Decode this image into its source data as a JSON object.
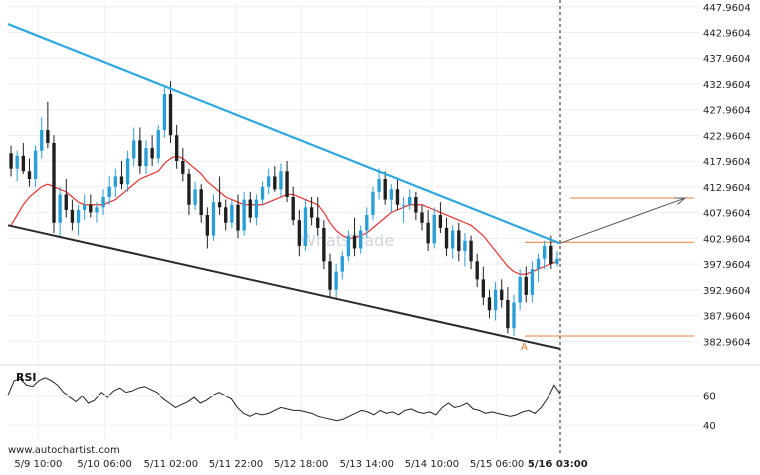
{
  "chart_data": {
    "type": "candlestick",
    "y_ticks": [
      "447.9604",
      "442.9604",
      "437.9604",
      "432.9604",
      "427.9604",
      "422.9604",
      "417.9604",
      "412.9604",
      "407.9604",
      "402.9604",
      "397.9604",
      "392.9604",
      "387.9604",
      "382.9604"
    ],
    "ylim": [
      380.5,
      448.5
    ],
    "x_ticks": [
      "5/9 10:00",
      "5/10 06:00",
      "5/11 02:00",
      "5/11 22:00",
      "5/12 18:00",
      "5/13 14:00",
      "5/14 10:00",
      "5/15 06:00",
      "5/16 03:00"
    ],
    "highlight_x_tick": "5/16 03:00",
    "candles": [
      [
        419.5,
        421.0,
        415.0,
        416.5
      ],
      [
        416.5,
        420.0,
        414.0,
        419.0
      ],
      [
        419.0,
        421.5,
        415.5,
        416.0
      ],
      [
        416.0,
        418.5,
        413.0,
        414.5
      ],
      [
        414.5,
        421.0,
        413.0,
        420.0
      ],
      [
        420.0,
        426.5,
        418.5,
        424.0
      ],
      [
        424.0,
        429.5,
        420.5,
        421.5
      ],
      [
        421.5,
        423.0,
        404.0,
        406.0
      ],
      [
        406.0,
        413.0,
        403.0,
        411.5
      ],
      [
        411.5,
        414.5,
        407.0,
        408.5
      ],
      [
        408.5,
        410.5,
        404.5,
        406.0
      ],
      [
        406.0,
        409.5,
        403.5,
        408.5
      ],
      [
        408.5,
        411.5,
        406.5,
        409.5
      ],
      [
        409.5,
        411.5,
        407.0,
        408.0
      ],
      [
        408.0,
        410.0,
        406.0,
        409.0
      ],
      [
        409.0,
        412.5,
        407.5,
        411.0
      ],
      [
        411.0,
        415.0,
        409.5,
        413.0
      ],
      [
        413.0,
        416.5,
        411.0,
        415.0
      ],
      [
        415.0,
        418.0,
        412.5,
        413.5
      ],
      [
        413.5,
        420.0,
        412.0,
        418.5
      ],
      [
        418.5,
        424.5,
        417.0,
        422.0
      ],
      [
        422.0,
        424.5,
        415.5,
        417.0
      ],
      [
        417.0,
        422.0,
        415.5,
        420.5
      ],
      [
        420.5,
        423.0,
        417.0,
        418.5
      ],
      [
        418.5,
        425.0,
        417.5,
        424.0
      ],
      [
        424.0,
        432.5,
        422.5,
        431.0
      ],
      [
        431.0,
        433.5,
        421.5,
        423.0
      ],
      [
        423.0,
        425.0,
        416.5,
        418.0
      ],
      [
        418.0,
        420.5,
        414.0,
        415.5
      ],
      [
        415.5,
        416.5,
        407.5,
        409.5
      ],
      [
        409.5,
        414.0,
        408.5,
        412.5
      ],
      [
        412.5,
        413.5,
        406.0,
        407.5
      ],
      [
        407.5,
        409.0,
        401.0,
        403.5
      ],
      [
        403.5,
        411.5,
        402.5,
        410.0
      ],
      [
        410.0,
        415.0,
        407.5,
        409.0
      ],
      [
        409.0,
        410.5,
        404.5,
        406.0
      ],
      [
        406.0,
        410.5,
        405.0,
        409.5
      ],
      [
        409.5,
        411.5,
        403.0,
        404.5
      ],
      [
        404.5,
        412.0,
        403.5,
        410.5
      ],
      [
        410.5,
        412.0,
        406.0,
        407.0
      ],
      [
        407.0,
        411.5,
        405.5,
        410.5
      ],
      [
        410.5,
        414.0,
        409.5,
        413.0
      ],
      [
        413.0,
        416.5,
        411.5,
        415.0
      ],
      [
        415.0,
        417.0,
        412.0,
        412.5
      ],
      [
        412.5,
        417.5,
        411.0,
        416.0
      ],
      [
        416.0,
        418.0,
        410.0,
        411.0
      ],
      [
        411.0,
        413.0,
        405.5,
        406.5
      ],
      [
        406.5,
        408.5,
        399.5,
        401.5
      ],
      [
        401.5,
        410.5,
        400.5,
        409.0
      ],
      [
        409.0,
        411.0,
        405.5,
        407.0
      ],
      [
        407.0,
        411.0,
        403.5,
        405.0
      ],
      [
        405.0,
        406.5,
        397.0,
        398.5
      ],
      [
        398.5,
        400.0,
        391.5,
        393.0
      ],
      [
        393.0,
        398.0,
        391.0,
        396.5
      ],
      [
        396.5,
        400.5,
        395.0,
        399.5
      ],
      [
        399.5,
        404.5,
        398.5,
        403.5
      ],
      [
        403.5,
        407.0,
        399.5,
        401.0
      ],
      [
        401.0,
        405.5,
        400.0,
        404.5
      ],
      [
        404.5,
        409.0,
        403.0,
        407.5
      ],
      [
        407.5,
        413.0,
        406.5,
        412.0
      ],
      [
        412.0,
        416.5,
        410.5,
        414.5
      ],
      [
        414.5,
        416.0,
        409.5,
        410.5
      ],
      [
        410.5,
        413.5,
        408.0,
        412.5
      ],
      [
        412.5,
        414.5,
        408.5,
        409.5
      ],
      [
        409.5,
        411.0,
        406.0,
        409.5
      ],
      [
        409.5,
        412.5,
        408.5,
        411.0
      ],
      [
        411.0,
        412.0,
        406.5,
        408.0
      ],
      [
        408.0,
        409.5,
        404.5,
        406.0
      ],
      [
        406.0,
        408.5,
        400.5,
        402.0
      ],
      [
        402.0,
        409.0,
        401.0,
        407.5
      ],
      [
        407.5,
        410.0,
        404.0,
        405.0
      ],
      [
        405.0,
        407.0,
        399.5,
        401.0
      ],
      [
        401.0,
        405.5,
        399.0,
        404.5
      ],
      [
        404.5,
        406.0,
        398.5,
        400.5
      ],
      [
        400.5,
        404.0,
        397.5,
        402.5
      ],
      [
        402.5,
        403.5,
        397.0,
        398.5
      ],
      [
        398.5,
        400.0,
        393.5,
        395.0
      ],
      [
        395.0,
        397.5,
        390.0,
        391.5
      ],
      [
        391.5,
        393.0,
        387.5,
        389.0
      ],
      [
        389.0,
        394.5,
        387.0,
        393.0
      ],
      [
        393.0,
        395.0,
        389.5,
        391.0
      ],
      [
        391.0,
        393.5,
        384.5,
        385.5
      ],
      [
        385.5,
        392.0,
        384.0,
        390.5
      ],
      [
        390.5,
        397.0,
        389.0,
        395.5
      ],
      [
        395.5,
        397.5,
        390.5,
        392.0
      ],
      [
        392.0,
        398.5,
        390.5,
        397.0
      ],
      [
        397.0,
        400.0,
        394.5,
        399.0
      ],
      [
        399.0,
        402.5,
        397.0,
        401.5
      ],
      [
        401.5,
        403.5,
        397.0,
        398.0
      ],
      [
        398.0,
        400.5,
        397.5,
        399.0
      ]
    ],
    "moving_average": [
      405.5,
      407.5,
      409.5,
      411.0,
      412.0,
      413.0,
      413.5,
      413.0,
      412.5,
      412.0,
      411.0,
      410.0,
      409.5,
      409.5,
      409.5,
      409.5,
      410.0,
      410.5,
      411.5,
      412.5,
      413.5,
      414.5,
      415.0,
      415.5,
      416.0,
      417.5,
      418.5,
      419.0,
      418.5,
      417.5,
      416.5,
      415.5,
      414.0,
      413.0,
      412.0,
      411.0,
      410.5,
      410.0,
      409.5,
      409.5,
      409.5,
      409.5,
      410.0,
      410.5,
      411.0,
      411.5,
      411.5,
      411.0,
      410.5,
      410.0,
      409.5,
      408.0,
      406.0,
      404.5,
      403.5,
      403.0,
      403.0,
      403.5,
      404.0,
      405.0,
      406.0,
      407.0,
      408.0,
      408.5,
      409.0,
      409.5,
      409.5,
      409.5,
      409.0,
      408.5,
      408.0,
      407.5,
      407.0,
      406.5,
      406.0,
      405.5,
      404.5,
      403.5,
      402.0,
      400.5,
      399.0,
      397.5,
      396.5,
      396.0,
      396.0,
      396.5,
      397.0,
      397.5,
      398.0,
      398.5
    ],
    "trendline_upper": [
      [
        0,
        444.6
      ],
      [
        90,
        402.0
      ]
    ],
    "trendline_lower": [
      [
        0,
        405.5
      ],
      [
        90,
        381.5
      ]
    ],
    "levels": [
      402.2,
      384.0
    ],
    "projection": {
      "from": [
        90,
        402.0
      ],
      "to": [
        102,
        410.8
      ],
      "level": 410.8
    },
    "annotation": "A",
    "rsi": {
      "label": "RSI",
      "ticks": [
        "60",
        "40"
      ],
      "ylim": [
        30,
        80
      ],
      "values": [
        60,
        70,
        71,
        67,
        66,
        70,
        72,
        70,
        67,
        62,
        59,
        56,
        60,
        55,
        57,
        62,
        59,
        63,
        65,
        62,
        63,
        65,
        66,
        64,
        62,
        58,
        55,
        52,
        54,
        56,
        59,
        55,
        57,
        60,
        62,
        60,
        58,
        52,
        48,
        46,
        48,
        47,
        48,
        50,
        52,
        51,
        50,
        50,
        49,
        48,
        46,
        45,
        44,
        43,
        44,
        46,
        48,
        50,
        49,
        47,
        50,
        48,
        49,
        47,
        50,
        51,
        49,
        48,
        49,
        47,
        52,
        55,
        52,
        53,
        55,
        51,
        50,
        48,
        49,
        48,
        47,
        46,
        47,
        49,
        50,
        48,
        52,
        58,
        67,
        61
      ]
    },
    "source": "www.autochartist.com",
    "watermark": "WhatsTrade"
  }
}
